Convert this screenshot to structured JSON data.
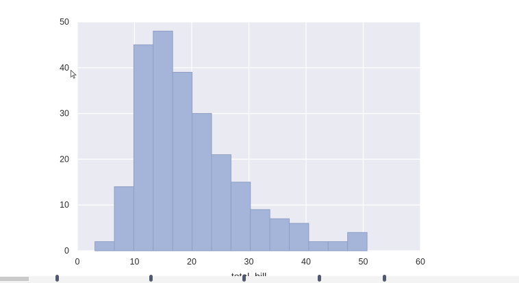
{
  "chart_data": {
    "type": "bar",
    "subtype": "histogram",
    "xlabel": "total_bill",
    "ylabel": "",
    "title": "",
    "xlim": [
      0,
      60
    ],
    "ylim": [
      0,
      50
    ],
    "xticks": [
      0,
      10,
      20,
      30,
      40,
      50,
      60
    ],
    "yticks": [
      0,
      10,
      20,
      30,
      40,
      50
    ],
    "grid": true,
    "bin_edges": [
      3.07,
      6.47,
      9.87,
      13.27,
      16.67,
      20.07,
      23.47,
      26.87,
      30.27,
      33.67,
      37.07,
      40.47,
      43.87,
      47.27,
      50.67
    ],
    "values": [
      2,
      14,
      45,
      48,
      39,
      30,
      21,
      15,
      9,
      7,
      6,
      2,
      2,
      4
    ],
    "colors": {
      "bar_fill": "#a4b5d9",
      "bar_edge": "#8e9fc5",
      "plot_background": "#eaeaf2",
      "grid": "#ffffff"
    }
  },
  "player": {
    "progress": 0.055,
    "markers": [
      0.11,
      0.29,
      0.47,
      0.615,
      0.74
    ]
  },
  "icons": {
    "cursor": "mouse-pointer-icon"
  }
}
